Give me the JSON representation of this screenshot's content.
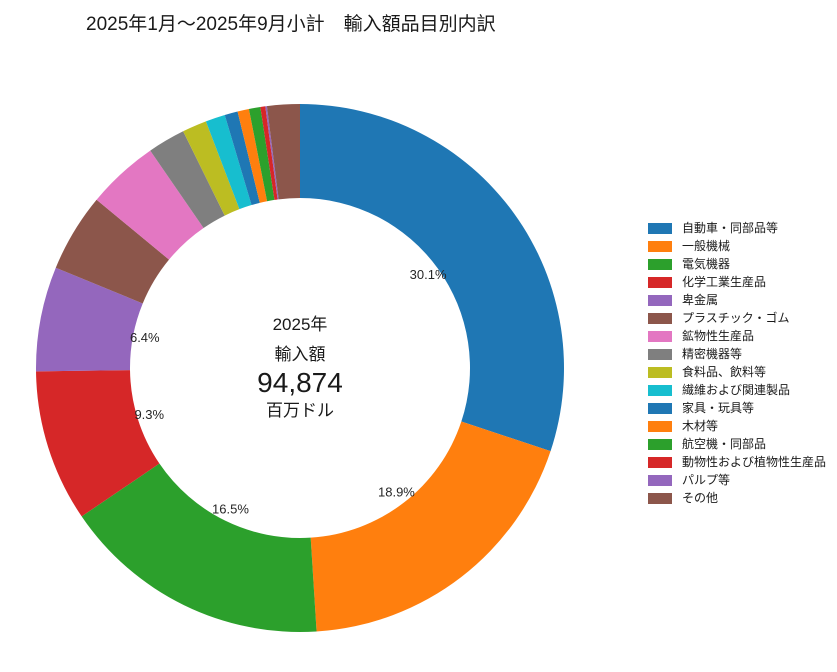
{
  "chart_data": {
    "type": "pie",
    "subtype": "donut",
    "title": "2025年1月～2025年9月小計　輸入額品目別内訳",
    "center_text": {
      "line1": "2025年",
      "line2": "輸入額",
      "value": "94,874",
      "unit": "百万ドル"
    },
    "start_angle_deg": 90,
    "direction": "clockwise",
    "inner_radius_ratio": 0.644,
    "label_min_pct": 5,
    "percent_label_suffix": "%",
    "legend_position": "right",
    "grid": false,
    "series": [
      {
        "label": "自動車・同部品等",
        "pct": 30.1,
        "color": "#1f77b4"
      },
      {
        "label": "一般機械",
        "pct": 18.9,
        "color": "#ff7f0e"
      },
      {
        "label": "電気機器",
        "pct": 16.5,
        "color": "#2ca02c"
      },
      {
        "label": "化学工業生産品",
        "pct": 9.3,
        "color": "#d62728"
      },
      {
        "label": "卑金属",
        "pct": 6.4,
        "color": "#9467bd"
      },
      {
        "label": "プラスチック・ゴム",
        "pct": 4.8,
        "color": "#8c564b"
      },
      {
        "label": "鉱物性生産品",
        "pct": 4.4,
        "color": "#e377c2"
      },
      {
        "label": "精密機器等",
        "pct": 2.3,
        "color": "#7f7f7f"
      },
      {
        "label": "食料品、飲料等",
        "pct": 1.5,
        "color": "#bcbd22"
      },
      {
        "label": "繊維および関連製品",
        "pct": 1.2,
        "color": "#17becf"
      },
      {
        "label": "家具・玩具等",
        "pct": 0.8,
        "color": "#1f77b4"
      },
      {
        "label": "木材等",
        "pct": 0.7,
        "color": "#ff7f0e"
      },
      {
        "label": "航空機・同部品",
        "pct": 0.7,
        "color": "#2ca02c"
      },
      {
        "label": "動物性および植物性生産品",
        "pct": 0.3,
        "color": "#d62728"
      },
      {
        "label": "パルプ等",
        "pct": 0.1,
        "color": "#9467bd"
      },
      {
        "label": "その他",
        "pct": 2.0,
        "color": "#8c564b"
      }
    ],
    "visible_percent_labels": [
      "30.1%",
      "18.9%",
      "16.5%",
      "9.3%",
      "6.4%"
    ],
    "text_colors": {
      "title": "#1a1a1a",
      "percent_label": "#262626",
      "center": "#1a1a1a",
      "legend": "#1a1a1a"
    },
    "background": "#ffffff"
  }
}
